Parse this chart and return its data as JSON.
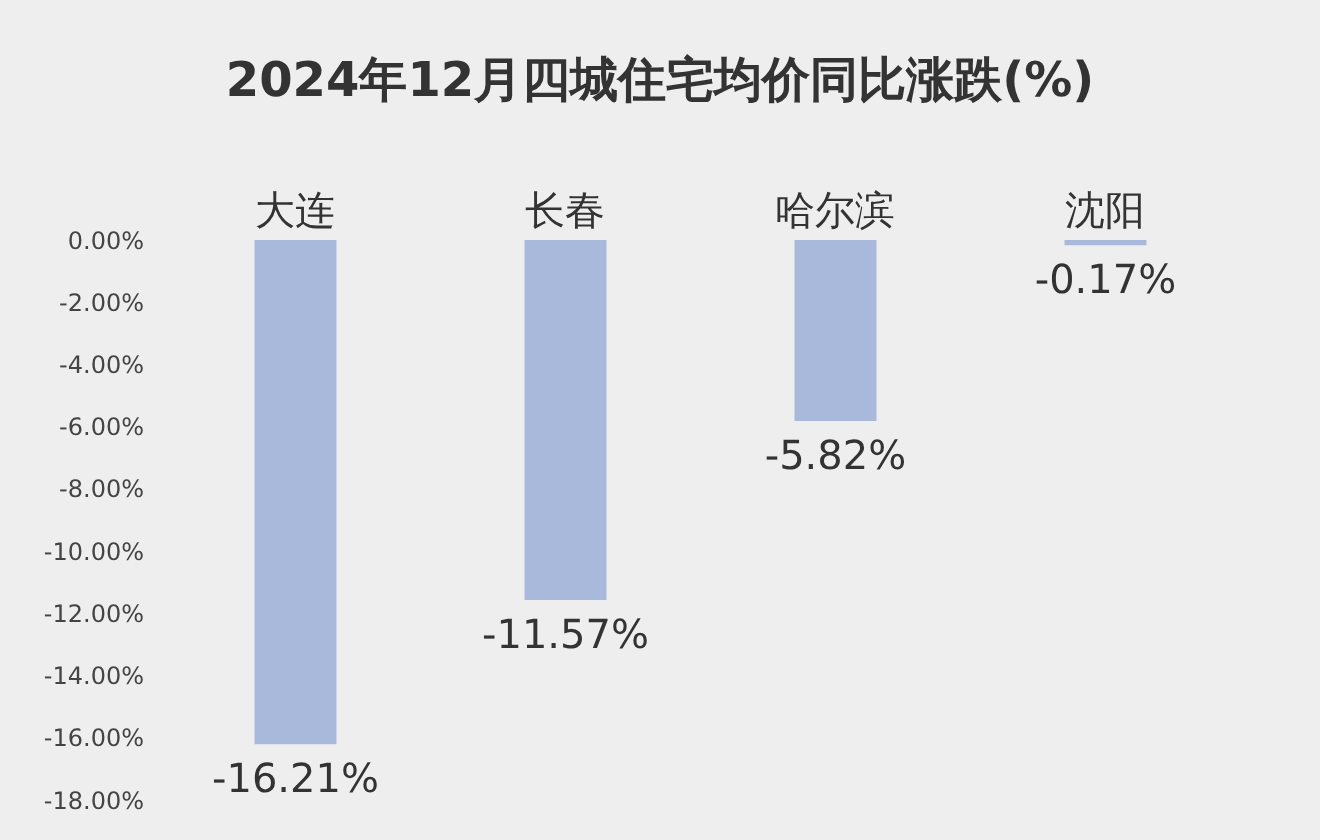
{
  "chart_data": {
    "type": "bar",
    "title": "2024年12月四城住宅均价同比涨跌(%)",
    "categories": [
      "大连",
      "长春",
      "哈尔滨",
      "沈阳"
    ],
    "values": [
      -16.21,
      -11.57,
      -5.82,
      -0.17
    ],
    "value_labels": [
      "-16.21%",
      "-11.57%",
      "-5.82%",
      "-0.17%"
    ],
    "color": "#a9b9dc",
    "ylim": [
      -18,
      0
    ],
    "yticks": [
      {
        "value": 0,
        "label": "0.00%"
      },
      {
        "value": -2,
        "label": "-2.00%"
      },
      {
        "value": -4,
        "label": "-4.00%"
      },
      {
        "value": -6,
        "label": "-6.00%"
      },
      {
        "value": -8,
        "label": "-8.00%"
      },
      {
        "value": -10,
        "label": "-10.00%"
      },
      {
        "value": -12,
        "label": "-12.00%"
      },
      {
        "value": -14,
        "label": "-14.00%"
      },
      {
        "value": -16,
        "label": "-16.00%"
      },
      {
        "value": -18,
        "label": "-18.00%"
      }
    ],
    "grid": false
  }
}
